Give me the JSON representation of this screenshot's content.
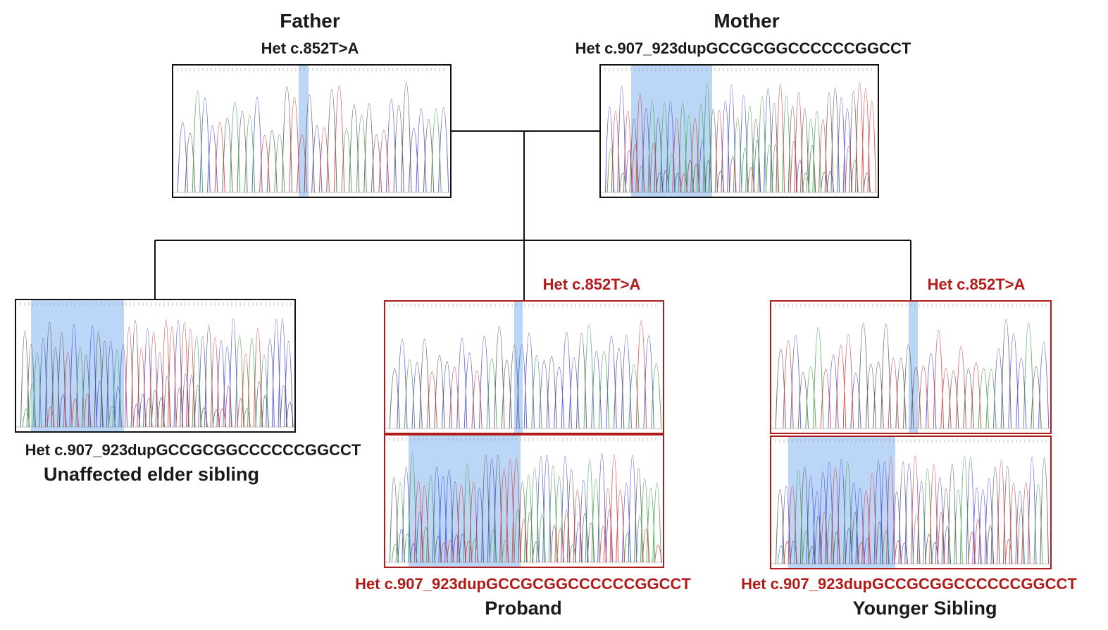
{
  "colors": {
    "trace_a": "#3fa04a",
    "trace_c": "#4a4ad8",
    "trace_g": "#555555",
    "trace_t": "#d43c3c",
    "highlight": "#bcd6f7",
    "affected_border": "#b01c1c",
    "normal_border": "#111111",
    "affected_text": "#b31b1b"
  },
  "father": {
    "name": "Father",
    "genotype": "Het c.852T>A"
  },
  "mother": {
    "name": "Mother",
    "genotype": "Het c.907_923dupGCCGCGGCCCCCCGGCCT"
  },
  "elder_sibling": {
    "name": "Unaffected elder sibling",
    "genotype": "Het c.907_923dupGCCGCGGCCCCCCGGCCT"
  },
  "proband": {
    "name": "Proband",
    "genotype_1": "Het c.852T>A",
    "genotype_2": "Het c.907_923dupGCCGCGGCCCCCCGGCCT"
  },
  "younger_sibling": {
    "name": "Younger Sibling",
    "genotype_1": "Het c.852T>A",
    "genotype_2": "Het c.907_923dupGCCGCGGCCCCCCGGCCT"
  },
  "icons": [
    "chromatogram-trace",
    "variant-highlight"
  ]
}
